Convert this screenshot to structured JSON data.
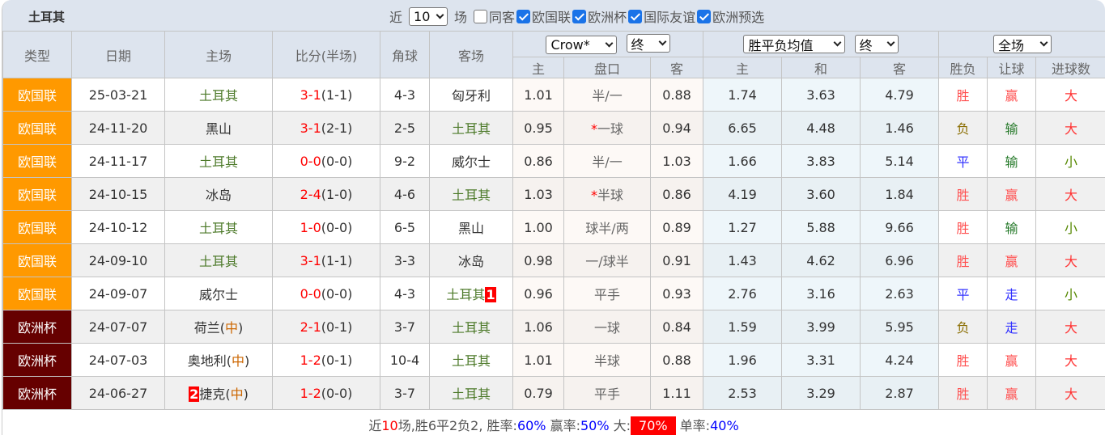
{
  "header": {
    "team": "土耳其",
    "recent_prefix": "近",
    "recent_count": "10",
    "recent_suffix": "场",
    "filters": [
      {
        "label": "同客",
        "checked": false
      },
      {
        "label": "欧国联",
        "checked": true
      },
      {
        "label": "欧洲杯",
        "checked": true
      },
      {
        "label": "国际友谊",
        "checked": true
      },
      {
        "label": "欧洲预选",
        "checked": true
      }
    ]
  },
  "columns": {
    "type": "类型",
    "date": "日期",
    "home": "主场",
    "score": "比分(半场)",
    "corner": "角球",
    "away": "客场",
    "company_select": "Crow*",
    "odds_time_select": "终",
    "euro_select": "胜平负均值",
    "euro_time_select": "终",
    "scope_select": "全场",
    "ah_home": "主",
    "ah_line": "盘口",
    "ah_away": "客",
    "eu_home": "主",
    "eu_draw": "和",
    "eu_away": "客",
    "result": "胜负",
    "handicap": "让球",
    "goals": "进球数"
  },
  "colors": {
    "欧国联": "#ff9900",
    "欧洲杯": "#660000",
    "胜": "#ff5050",
    "负": "#8a6d00",
    "平": "#3333ff",
    "赢": "#ff5050",
    "输": "#267a2a",
    "走": "#3333ff",
    "大": "#ff3333",
    "小": "#558800"
  },
  "rows": [
    {
      "type": "欧国联",
      "date": "25-03-21",
      "home": "土耳其",
      "home_rank": "",
      "home_neutral": false,
      "ft": "3-1",
      "ht": "(1-1)",
      "corner": "4-3",
      "away": "匈牙利",
      "away_rank": "",
      "ah_h": "1.01",
      "line": "半/一",
      "line_star": false,
      "ah_a": "0.88",
      "eu_h": "1.74",
      "eu_d": "3.63",
      "eu_a": "4.79",
      "res": "胜",
      "hcp": "赢",
      "goals": "大"
    },
    {
      "type": "欧国联",
      "date": "24-11-20",
      "home": "黑山",
      "home_rank": "",
      "home_neutral": false,
      "ft": "3-1",
      "ht": "(2-1)",
      "corner": "2-5",
      "away": "土耳其",
      "away_rank": "",
      "ah_h": "0.95",
      "line": "一球",
      "line_star": true,
      "ah_a": "0.94",
      "eu_h": "6.65",
      "eu_d": "4.48",
      "eu_a": "1.46",
      "res": "负",
      "hcp": "输",
      "goals": "大"
    },
    {
      "type": "欧国联",
      "date": "24-11-17",
      "home": "土耳其",
      "home_rank": "",
      "home_neutral": false,
      "ft": "0-0",
      "ht": "(0-0)",
      "corner": "9-2",
      "away": "威尔士",
      "away_rank": "",
      "ah_h": "0.86",
      "line": "半/一",
      "line_star": false,
      "ah_a": "1.03",
      "eu_h": "1.66",
      "eu_d": "3.83",
      "eu_a": "5.14",
      "res": "平",
      "hcp": "输",
      "goals": "小"
    },
    {
      "type": "欧国联",
      "date": "24-10-15",
      "home": "冰岛",
      "home_rank": "",
      "home_neutral": false,
      "ft": "2-4",
      "ht": "(1-0)",
      "corner": "4-6",
      "away": "土耳其",
      "away_rank": "",
      "ah_h": "1.03",
      "line": "半球",
      "line_star": true,
      "ah_a": "0.86",
      "eu_h": "4.19",
      "eu_d": "3.60",
      "eu_a": "1.84",
      "res": "胜",
      "hcp": "赢",
      "goals": "大"
    },
    {
      "type": "欧国联",
      "date": "24-10-12",
      "home": "土耳其",
      "home_rank": "",
      "home_neutral": false,
      "ft": "1-0",
      "ht": "(0-0)",
      "corner": "6-5",
      "away": "黑山",
      "away_rank": "",
      "ah_h": "1.00",
      "line": "球半/两",
      "line_star": false,
      "ah_a": "0.89",
      "eu_h": "1.27",
      "eu_d": "5.88",
      "eu_a": "9.66",
      "res": "胜",
      "hcp": "输",
      "goals": "小"
    },
    {
      "type": "欧国联",
      "date": "24-09-10",
      "home": "土耳其",
      "home_rank": "",
      "home_neutral": false,
      "ft": "3-1",
      "ht": "(1-1)",
      "corner": "3-3",
      "away": "冰岛",
      "away_rank": "",
      "ah_h": "0.98",
      "line": "一/球半",
      "line_star": false,
      "ah_a": "0.91",
      "eu_h": "1.43",
      "eu_d": "4.62",
      "eu_a": "6.96",
      "res": "胜",
      "hcp": "赢",
      "goals": "大"
    },
    {
      "type": "欧国联",
      "date": "24-09-07",
      "home": "威尔士",
      "home_rank": "",
      "home_neutral": false,
      "ft": "0-0",
      "ht": "(0-0)",
      "corner": "4-3",
      "away": "土耳其",
      "away_rank": "1",
      "ah_h": "0.96",
      "line": "平手",
      "line_star": false,
      "ah_a": "0.93",
      "eu_h": "2.76",
      "eu_d": "3.16",
      "eu_a": "2.63",
      "res": "平",
      "hcp": "走",
      "goals": "小"
    },
    {
      "type": "欧洲杯",
      "date": "24-07-07",
      "home": "荷兰",
      "home_rank": "",
      "home_neutral": true,
      "ft": "2-1",
      "ht": "(0-1)",
      "corner": "3-7",
      "away": "土耳其",
      "away_rank": "",
      "ah_h": "1.06",
      "line": "一球",
      "line_star": false,
      "ah_a": "0.84",
      "eu_h": "1.59",
      "eu_d": "3.99",
      "eu_a": "5.95",
      "res": "负",
      "hcp": "走",
      "goals": "大"
    },
    {
      "type": "欧洲杯",
      "date": "24-07-03",
      "home": "奥地利",
      "home_rank": "",
      "home_neutral": true,
      "ft": "1-2",
      "ht": "(0-1)",
      "corner": "10-4",
      "away": "土耳其",
      "away_rank": "",
      "ah_h": "1.01",
      "line": "半球",
      "line_star": false,
      "ah_a": "0.88",
      "eu_h": "1.96",
      "eu_d": "3.31",
      "eu_a": "4.24",
      "res": "胜",
      "hcp": "赢",
      "goals": "大"
    },
    {
      "type": "欧洲杯",
      "date": "24-06-27",
      "home": "捷克",
      "home_rank": "2",
      "home_neutral": true,
      "ft": "1-2",
      "ht": "(0-0)",
      "corner": "3-7",
      "away": "土耳其",
      "away_rank": "",
      "ah_h": "0.79",
      "line": "平手",
      "line_star": false,
      "ah_a": "1.11",
      "eu_h": "2.53",
      "eu_d": "3.29",
      "eu_a": "2.87",
      "res": "胜",
      "hcp": "赢",
      "goals": "大"
    }
  ],
  "neutral_mark": "中",
  "star": "*",
  "footer": {
    "p1": "近",
    "count": "10",
    "p2": "场,胜6平2负2, 胜率:",
    "win_rate": "60%",
    "p3": " 赢率:",
    "cover_rate": "50%",
    "p4": " 大:",
    "over_rate": "70%",
    "p5": " 单率:",
    "odd_rate": "40%"
  }
}
